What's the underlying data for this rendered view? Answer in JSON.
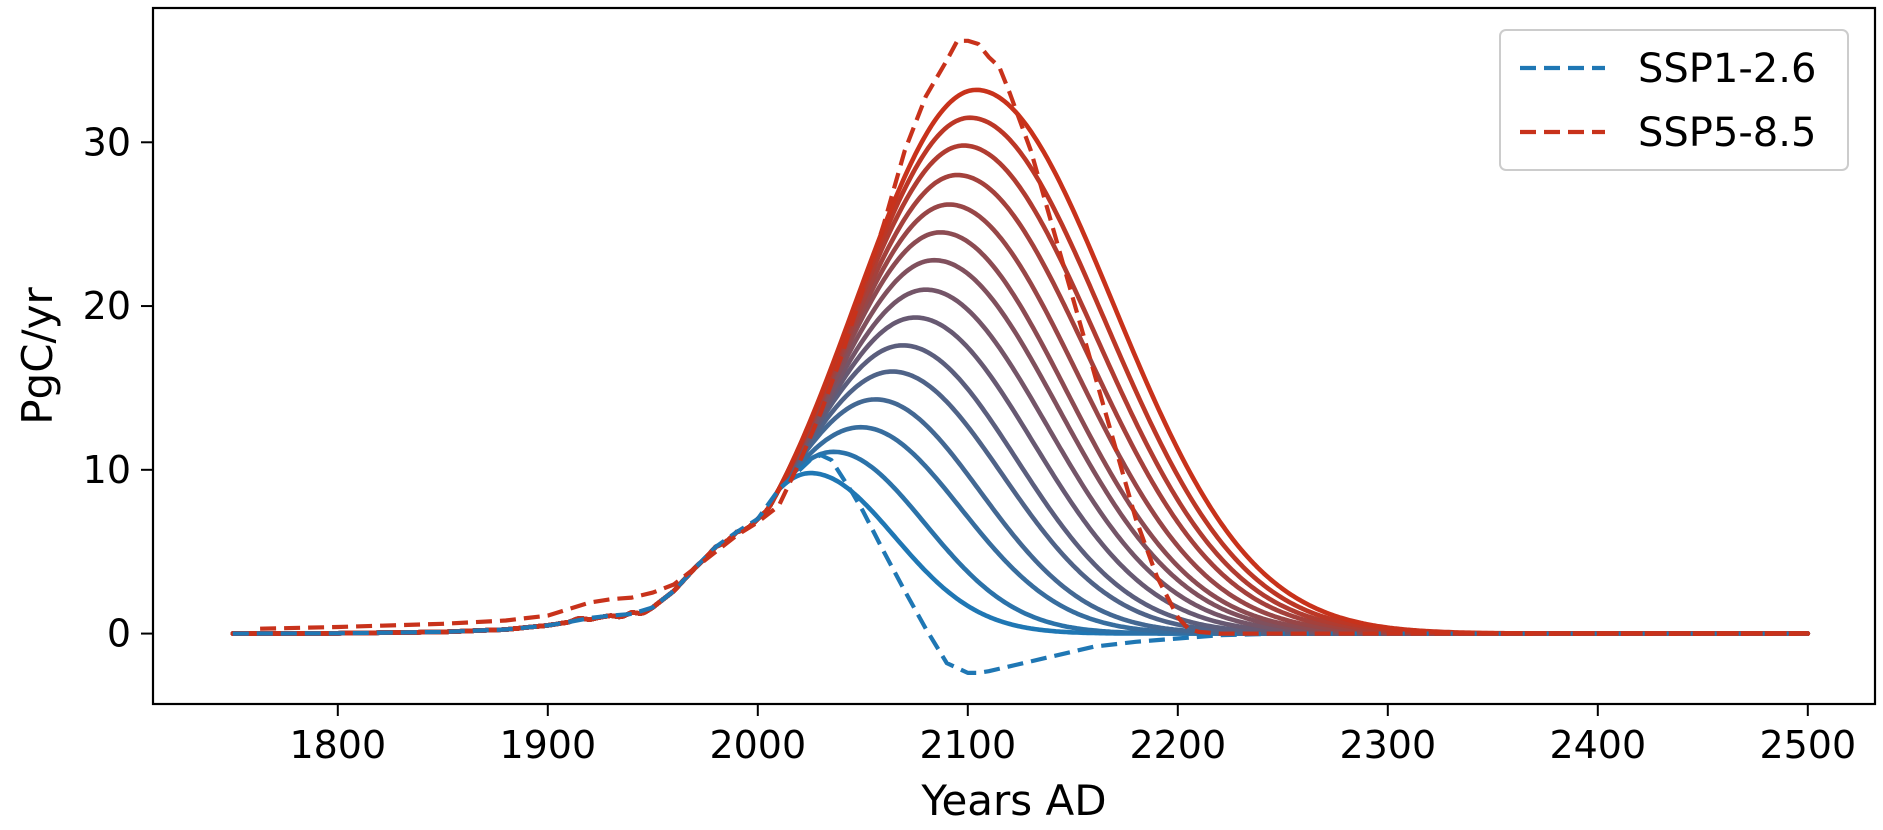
{
  "chart_data": {
    "type": "line",
    "title": "",
    "xlabel": "Years AD",
    "ylabel": "PgC/yr",
    "xlim": [
      1712,
      2532
    ],
    "ylim": [
      -4.3,
      38.2
    ],
    "xticks": [
      1800,
      1900,
      2000,
      2100,
      2200,
      2300,
      2400,
      2500
    ],
    "xtick_labels": [
      "1800",
      "1900",
      "2000",
      "2100",
      "2200",
      "2300",
      "2400",
      "2500"
    ],
    "yticks": [
      0,
      10,
      20,
      30
    ],
    "ytick_labels": [
      "0",
      "10",
      "20",
      "30"
    ],
    "grid": false,
    "legend_position": "top-right",
    "colors": {
      "low": "#1f77b4",
      "high": "#c8321b"
    },
    "legend": [
      {
        "label": "SSP1-2.6",
        "color": "#1f77b4",
        "style": "dashed"
      },
      {
        "label": "SSP5-8.5",
        "color": "#c8321b",
        "style": "dashed"
      }
    ],
    "series": [
      {
        "label": "SSP1-2.6",
        "style": "dashed",
        "color": "#1f77b4",
        "x": [
          1750,
          1800,
          1850,
          1880,
          1900,
          1910,
          1920,
          1930,
          1940,
          1950,
          1960,
          1970,
          1980,
          1990,
          2000,
          2010,
          2020,
          2025,
          2030,
          2035,
          2040,
          2045,
          2050,
          2060,
          2070,
          2080,
          2090,
          2100,
          2105,
          2110,
          2120,
          2140,
          2160,
          2180,
          2200,
          2220,
          2250,
          2300,
          2400,
          2500
        ],
        "y": [
          0.0,
          0.02,
          0.1,
          0.25,
          0.5,
          0.7,
          0.95,
          1.1,
          1.2,
          1.6,
          2.6,
          4.0,
          5.3,
          6.2,
          7.0,
          8.8,
          10.0,
          10.6,
          10.9,
          10.6,
          9.6,
          8.6,
          7.5,
          5.0,
          2.6,
          0.3,
          -1.8,
          -2.4,
          -2.4,
          -2.3,
          -2.0,
          -1.4,
          -0.8,
          -0.5,
          -0.3,
          -0.1,
          0.0,
          0.0,
          0.0,
          0.0
        ]
      },
      {
        "label": "SSP5-8.5",
        "style": "dashed",
        "color": "#c8321b",
        "x": [
          1763,
          1800,
          1850,
          1880,
          1900,
          1910,
          1920,
          1930,
          1940,
          1950,
          1960,
          1970,
          1980,
          1990,
          2000,
          2010,
          2020,
          2030,
          2040,
          2050,
          2060,
          2070,
          2080,
          2090,
          2095,
          2100,
          2105,
          2110,
          2115,
          2120,
          2130,
          2140,
          2150,
          2160,
          2170,
          2180,
          2190,
          2200,
          2205,
          2210,
          2220,
          2250,
          2300,
          2400,
          2500
        ],
        "y": [
          0.3,
          0.4,
          0.6,
          0.8,
          1.1,
          1.5,
          1.9,
          2.1,
          2.2,
          2.5,
          3.0,
          4.0,
          5.0,
          6.0,
          6.8,
          7.8,
          10.5,
          13.5,
          17.0,
          21.0,
          25.0,
          29.5,
          32.8,
          35.0,
          36.2,
          36.2,
          36.0,
          35.2,
          34.6,
          33.0,
          29.5,
          25.0,
          20.5,
          16.0,
          11.5,
          7.0,
          3.5,
          1.0,
          0.3,
          0.1,
          0.0,
          0.0,
          0.0,
          0.0,
          0.0
        ]
      }
    ],
    "scenario_curves": [
      {
        "peak_year": 2025,
        "peak_value": 9.8
      },
      {
        "peak_year": 2036,
        "peak_value": 11.1
      },
      {
        "peak_year": 2049,
        "peak_value": 12.6
      },
      {
        "peak_year": 2056,
        "peak_value": 14.3
      },
      {
        "peak_year": 2064,
        "peak_value": 16.0
      },
      {
        "peak_year": 2069,
        "peak_value": 17.6
      },
      {
        "peak_year": 2075,
        "peak_value": 19.3
      },
      {
        "peak_year": 2080,
        "peak_value": 21.0
      },
      {
        "peak_year": 2084,
        "peak_value": 22.8
      },
      {
        "peak_year": 2087,
        "peak_value": 24.5
      },
      {
        "peak_year": 2091,
        "peak_value": 26.2
      },
      {
        "peak_year": 2095,
        "peak_value": 28.0
      },
      {
        "peak_year": 2098,
        "peak_value": 29.8
      },
      {
        "peak_year": 2101,
        "peak_value": 31.5
      },
      {
        "peak_year": 2104,
        "peak_value": 33.2
      }
    ],
    "historical_emissions": {
      "x": [
        1750,
        1800,
        1850,
        1880,
        1900,
        1910,
        1915,
        1920,
        1925,
        1930,
        1935,
        1940,
        1945,
        1950,
        1960,
        1970,
        1975,
        1980,
        1985,
        1990,
        1995,
        2000,
        2005,
        2010
      ],
      "y": [
        0.0,
        0.02,
        0.1,
        0.25,
        0.5,
        0.7,
        0.95,
        0.85,
        1.0,
        1.1,
        1.0,
        1.3,
        1.2,
        1.6,
        2.6,
        4.0,
        4.6,
        5.3,
        5.6,
        6.2,
        6.4,
        7.0,
        7.6,
        8.8
      ]
    }
  }
}
